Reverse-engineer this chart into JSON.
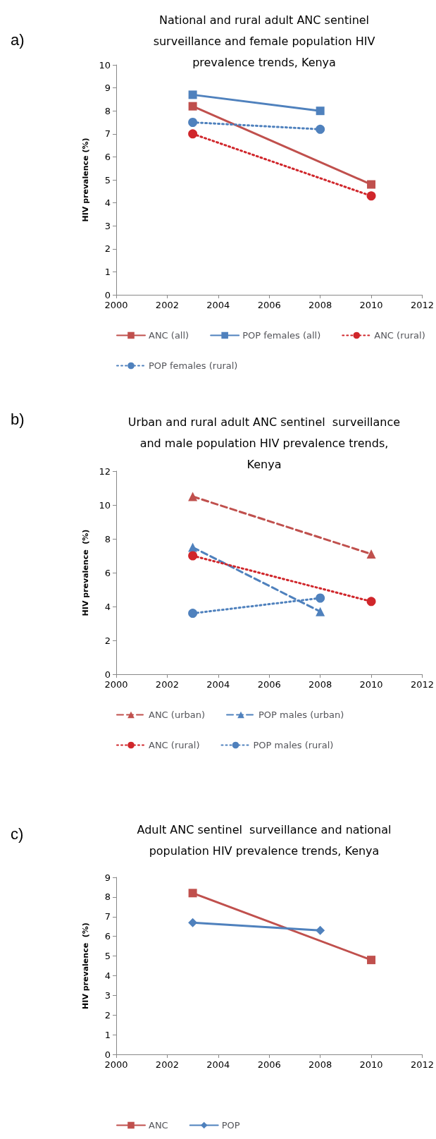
{
  "chart_data": [
    {
      "type": "line",
      "title": "National and rural adult ANC sentinel\nsurveillance and female population HIV\nprevalence trends, Kenya",
      "ylabel": "HIV prevalence (%)",
      "annotations": [
        "a)"
      ],
      "xlim": [
        2000,
        2012
      ],
      "xticks": [
        2000,
        2002,
        2004,
        2006,
        2008,
        2010,
        2012
      ],
      "ylim": [
        0,
        10
      ],
      "yticks": [
        0,
        1,
        2,
        3,
        4,
        5,
        6,
        7,
        8,
        9,
        10
      ],
      "grid": false,
      "legend": "bottom",
      "series": [
        {
          "name": "ANC (all)",
          "color": "#c0504d",
          "x": [
            2003,
            2010
          ],
          "values": [
            8.2,
            4.8
          ],
          "marker": "square",
          "line_style": "solid"
        },
        {
          "name": "POP females (all)",
          "color": "#4f81bd",
          "x": [
            2003,
            2008
          ],
          "values": [
            8.7,
            8.0
          ],
          "marker": "square",
          "line_style": "solid"
        },
        {
          "name": "ANC (rural)",
          "color": "#d0262b",
          "x": [
            2003,
            2010
          ],
          "values": [
            7.0,
            4.3
          ],
          "marker": "circle",
          "line_style": "dotted"
        },
        {
          "name": "POP females (rural)",
          "color": "#4f81bd",
          "x": [
            2003,
            2008
          ],
          "values": [
            7.5,
            7.2
          ],
          "marker": "circle",
          "line_style": "dotted"
        }
      ]
    },
    {
      "type": "line",
      "title": "Urban and rural adult ANC sentinel  surveillance\nand male population HIV prevalence trends,\nKenya",
      "ylabel": "HIV prevalence  (%)",
      "annotations": [
        "b)"
      ],
      "xlim": [
        2000,
        2012
      ],
      "xticks": [
        2000,
        2002,
        2004,
        2006,
        2008,
        2010,
        2012
      ],
      "ylim": [
        0,
        12
      ],
      "yticks": [
        0,
        2,
        4,
        6,
        8,
        10,
        12
      ],
      "grid": false,
      "legend": "bottom",
      "series": [
        {
          "name": "ANC (urban)",
          "color": "#c0504d",
          "x": [
            2003,
            2010
          ],
          "values": [
            10.5,
            7.1
          ],
          "marker": "triangle",
          "line_style": "dashed"
        },
        {
          "name": "POP males (urban)",
          "color": "#4f81bd",
          "x": [
            2003,
            2008
          ],
          "values": [
            7.5,
            3.7
          ],
          "marker": "triangle",
          "line_style": "dashed"
        },
        {
          "name": "ANC (rural)",
          "color": "#d0262b",
          "x": [
            2003,
            2010
          ],
          "values": [
            7.0,
            4.3
          ],
          "marker": "circle",
          "line_style": "dotted"
        },
        {
          "name": "POP males (rural)",
          "color": "#4f81bd",
          "x": [
            2003,
            2008
          ],
          "values": [
            3.6,
            4.5
          ],
          "marker": "circle",
          "line_style": "dotted"
        }
      ]
    },
    {
      "type": "line",
      "title": "Adult ANC sentinel  surveillance and national\npopulation HIV prevalence trends, Kenya",
      "ylabel": "HIV prevalence  (%)",
      "annotations": [
        "c)"
      ],
      "xlim": [
        2000,
        2012
      ],
      "xticks": [
        2000,
        2002,
        2004,
        2006,
        2008,
        2010,
        2012
      ],
      "ylim": [
        0,
        9
      ],
      "yticks": [
        0,
        1,
        2,
        3,
        4,
        5,
        6,
        7,
        8,
        9
      ],
      "grid": false,
      "legend": "bottom",
      "series": [
        {
          "name": "ANC",
          "color": "#c0504d",
          "x": [
            2003,
            2010
          ],
          "values": [
            8.2,
            4.8
          ],
          "marker": "square",
          "line_style": "solid"
        },
        {
          "name": "POP",
          "color": "#4f81bd",
          "x": [
            2003,
            2008
          ],
          "values": [
            6.7,
            6.3
          ],
          "marker": "diamond",
          "line_style": "solid"
        }
      ]
    }
  ]
}
